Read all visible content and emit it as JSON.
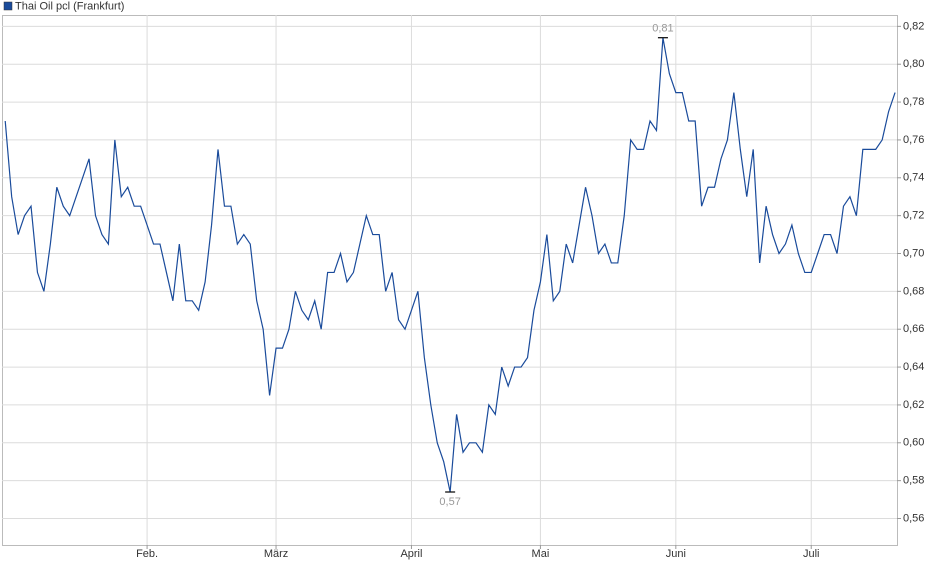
{
  "chart_data": {
    "type": "line",
    "series": [
      {
        "name": "Thai Oil pcl (Frankfurt)",
        "color": "#1a4b9b",
        "values": [
          0.77,
          0.73,
          0.71,
          0.72,
          0.725,
          0.69,
          0.68,
          0.705,
          0.735,
          0.725,
          0.72,
          0.73,
          0.74,
          0.75,
          0.72,
          0.71,
          0.705,
          0.76,
          0.73,
          0.735,
          0.725,
          0.725,
          0.715,
          0.705,
          0.705,
          0.69,
          0.675,
          0.705,
          0.675,
          0.675,
          0.67,
          0.685,
          0.715,
          0.755,
          0.725,
          0.725,
          0.705,
          0.71,
          0.705,
          0.675,
          0.66,
          0.625,
          0.65,
          0.65,
          0.66,
          0.68,
          0.67,
          0.665,
          0.675,
          0.66,
          0.69,
          0.69,
          0.7,
          0.685,
          0.69,
          0.705,
          0.72,
          0.71,
          0.71,
          0.68,
          0.69,
          0.665,
          0.66,
          0.67,
          0.68,
          0.645,
          0.62,
          0.6,
          0.59,
          0.574,
          0.615,
          0.595,
          0.6,
          0.6,
          0.595,
          0.62,
          0.615,
          0.64,
          0.63,
          0.64,
          0.64,
          0.645,
          0.67,
          0.685,
          0.71,
          0.675,
          0.68,
          0.705,
          0.695,
          0.715,
          0.735,
          0.72,
          0.7,
          0.705,
          0.695,
          0.695,
          0.72,
          0.76,
          0.755,
          0.755,
          0.77,
          0.765,
          0.814,
          0.795,
          0.785,
          0.785,
          0.77,
          0.77,
          0.725,
          0.735,
          0.735,
          0.75,
          0.76,
          0.785,
          0.755,
          0.73,
          0.755,
          0.695,
          0.725,
          0.71,
          0.7,
          0.705,
          0.715,
          0.7,
          0.69,
          0.69,
          0.7,
          0.71,
          0.71,
          0.7,
          0.725,
          0.73,
          0.72,
          0.755,
          0.755,
          0.755,
          0.76,
          0.775,
          0.785
        ],
        "value_labels": [
          null,
          null,
          null,
          null,
          null,
          null,
          null,
          null,
          null,
          null,
          null,
          null,
          null,
          null,
          null,
          null,
          null,
          null,
          null,
          null,
          null,
          null,
          null,
          null,
          null,
          null,
          null,
          null,
          null,
          null,
          null,
          null,
          null,
          null,
          null,
          null,
          null,
          null,
          null,
          null,
          null,
          null,
          null,
          null,
          null,
          null,
          null,
          null,
          null,
          null,
          null,
          null,
          null,
          null,
          null,
          null,
          null,
          null,
          null,
          null,
          null,
          null,
          null,
          null,
          null,
          null,
          null,
          null,
          null,
          "0,57",
          null,
          null,
          null,
          null,
          null,
          null,
          null,
          null,
          null,
          null,
          null,
          null,
          null,
          null,
          null,
          null,
          null,
          null,
          null,
          null,
          null,
          null,
          null,
          null,
          null,
          null,
          null,
          null,
          null,
          null,
          null,
          null,
          "0,81",
          null,
          null,
          null,
          null,
          null,
          null,
          null,
          null,
          null,
          null,
          null,
          null,
          null,
          null,
          null,
          null,
          null,
          null,
          null,
          null,
          null,
          null,
          null,
          null,
          null,
          null,
          null,
          null,
          null,
          null,
          null,
          null,
          null,
          null,
          null,
          null
        ]
      }
    ],
    "xlim": [
      -0.5,
      138.3
    ],
    "xticks": [
      {
        "value": 22,
        "label": "Feb."
      },
      {
        "value": 42,
        "label": "März"
      },
      {
        "value": 63,
        "label": "April"
      },
      {
        "value": 83,
        "label": "Mai"
      },
      {
        "value": 104,
        "label": "Juni"
      },
      {
        "value": 125,
        "label": "Juli"
      }
    ],
    "ylim": [
      0.546,
      0.826
    ],
    "yticks": [
      {
        "value": 0.56,
        "label": "0,56"
      },
      {
        "value": 0.58,
        "label": "0,58"
      },
      {
        "value": 0.6,
        "label": "0,60"
      },
      {
        "value": 0.62,
        "label": "0,62"
      },
      {
        "value": 0.64,
        "label": "0,64"
      },
      {
        "value": 0.66,
        "label": "0,66"
      },
      {
        "value": 0.68,
        "label": "0,68"
      },
      {
        "value": 0.7,
        "label": "0,70"
      },
      {
        "value": 0.72,
        "label": "0,72"
      },
      {
        "value": 0.74,
        "label": "0,74"
      },
      {
        "value": 0.76,
        "label": "0,76"
      },
      {
        "value": 0.78,
        "label": "0,78"
      },
      {
        "value": 0.8,
        "label": "0,80"
      },
      {
        "value": 0.82,
        "label": "0,82"
      }
    ],
    "grid": true
  }
}
